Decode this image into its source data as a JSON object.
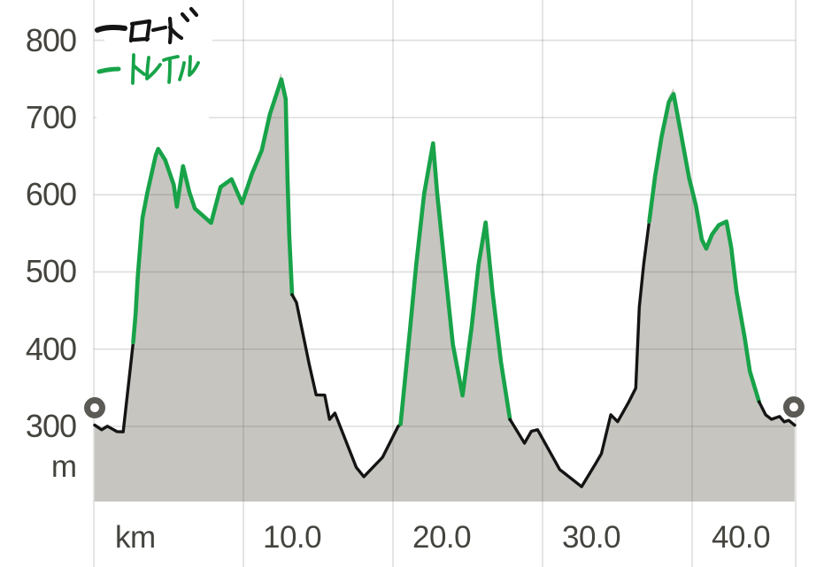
{
  "chart_data": {
    "type": "area",
    "title": "",
    "x_axis": {
      "unit_label": "km",
      "ticks": [
        {
          "km": 10,
          "label": "10.0"
        },
        {
          "km": 20,
          "label": "20.0"
        },
        {
          "km": 30,
          "label": "30.0"
        },
        {
          "km": 40,
          "label": "40.0"
        }
      ],
      "grid_km": [
        0,
        10,
        20,
        30,
        40
      ],
      "range_km": [
        0,
        46.9
      ]
    },
    "y_axis": {
      "unit_label": "m",
      "ticks": [
        {
          "m": 800,
          "label": "800"
        },
        {
          "m": 700,
          "label": "700"
        },
        {
          "m": 600,
          "label": "600"
        },
        {
          "m": 500,
          "label": "500"
        },
        {
          "m": 400,
          "label": "400"
        },
        {
          "m": 300,
          "label": "300"
        }
      ],
      "grid_m": [
        300,
        400,
        500,
        600,
        700,
        800
      ],
      "range_m": [
        204,
        852
      ]
    },
    "profile_points_km_m": [
      [
        0.05,
        302
      ],
      [
        0.5,
        295
      ],
      [
        0.95,
        301
      ],
      [
        1.5,
        292
      ],
      [
        2.0,
        294
      ],
      [
        2.6,
        409
      ],
      [
        2.75,
        448
      ],
      [
        2.9,
        494
      ],
      [
        3.1,
        531
      ],
      [
        3.3,
        569
      ],
      [
        3.6,
        604
      ],
      [
        4.1,
        652
      ],
      [
        4.3,
        662
      ],
      [
        4.8,
        646
      ],
      [
        5.3,
        614
      ],
      [
        5.55,
        585
      ],
      [
        6.0,
        638
      ],
      [
        6.35,
        604
      ],
      [
        6.75,
        581
      ],
      [
        7.8,
        564
      ],
      [
        8.5,
        609
      ],
      [
        9.2,
        619
      ],
      [
        9.9,
        589
      ],
      [
        10.6,
        629
      ],
      [
        11.2,
        660
      ],
      [
        11.8,
        709
      ],
      [
        12.5,
        758
      ],
      [
        12.8,
        730
      ],
      [
        12.95,
        623
      ],
      [
        13.1,
        549
      ],
      [
        13.3,
        471
      ],
      [
        13.55,
        459
      ],
      [
        14.45,
        379
      ],
      [
        14.85,
        342
      ],
      [
        15.45,
        340
      ],
      [
        15.8,
        310
      ],
      [
        16.1,
        316
      ],
      [
        17.5,
        248
      ],
      [
        18.1,
        235
      ],
      [
        19.35,
        260
      ],
      [
        20.35,
        299
      ],
      [
        20.55,
        302
      ],
      [
        21.1,
        425
      ],
      [
        21.55,
        509
      ],
      [
        22.1,
        600
      ],
      [
        22.65,
        671
      ],
      [
        23.0,
        600
      ],
      [
        23.5,
        497
      ],
      [
        24.0,
        405
      ],
      [
        24.65,
        339
      ],
      [
        25.25,
        428
      ],
      [
        25.75,
        509
      ],
      [
        26.15,
        565
      ],
      [
        26.7,
        474
      ],
      [
        27.2,
        382
      ],
      [
        27.85,
        310
      ],
      [
        28.75,
        279
      ],
      [
        29.3,
        294
      ],
      [
        29.65,
        296
      ],
      [
        31.1,
        245
      ],
      [
        32.6,
        221
      ],
      [
        33.5,
        251
      ],
      [
        33.95,
        265
      ],
      [
        34.55,
        316
      ],
      [
        35.0,
        305
      ],
      [
        35.75,
        331
      ],
      [
        36.2,
        350
      ],
      [
        36.5,
        455
      ],
      [
        36.8,
        509
      ],
      [
        37.1,
        566
      ],
      [
        37.5,
        623
      ],
      [
        38.0,
        680
      ],
      [
        38.4,
        726
      ],
      [
        38.75,
        738
      ],
      [
        39.3,
        680
      ],
      [
        39.75,
        623
      ],
      [
        40.3,
        585
      ],
      [
        40.65,
        543
      ],
      [
        40.9,
        530
      ],
      [
        41.35,
        549
      ],
      [
        41.8,
        560
      ],
      [
        42.25,
        566
      ],
      [
        42.65,
        531
      ],
      [
        43.0,
        474
      ],
      [
        43.45,
        417
      ],
      [
        43.9,
        371
      ],
      [
        44.45,
        331
      ],
      [
        44.9,
        316
      ],
      [
        45.35,
        308
      ],
      [
        45.8,
        314
      ],
      [
        46.15,
        305
      ],
      [
        46.5,
        308
      ],
      [
        46.85,
        302
      ]
    ],
    "surface_segments": [
      {
        "surface": "road",
        "from_km": 0.05,
        "to_km": 2.6
      },
      {
        "surface": "trail",
        "from_km": 2.6,
        "to_km": 13.3
      },
      {
        "surface": "road",
        "from_km": 13.3,
        "to_km": 20.55
      },
      {
        "surface": "trail",
        "from_km": 20.55,
        "to_km": 27.85
      },
      {
        "surface": "road",
        "from_km": 27.85,
        "to_km": 37.1
      },
      {
        "surface": "trail",
        "from_km": 37.1,
        "to_km": 44.45
      },
      {
        "surface": "road",
        "from_km": 44.45,
        "to_km": 46.85
      }
    ],
    "legend": [
      {
        "id": "road",
        "label": "ロード",
        "color": "#141414"
      },
      {
        "id": "trail",
        "label": "トレイル",
        "color": "#18a349"
      }
    ],
    "markers": [
      {
        "name": "start",
        "km": 0.06,
        "m": 324
      },
      {
        "name": "end",
        "km": 46.8,
        "m": 325
      }
    ]
  },
  "colors": {
    "background": "#ffffff",
    "area_fill": "#c7c5c0",
    "gridline": "rgba(75,73,67,0.18)",
    "road": "#141414",
    "trail": "#18a349",
    "tick_text": "#45433e",
    "marker_ring": "#5c5a55"
  }
}
